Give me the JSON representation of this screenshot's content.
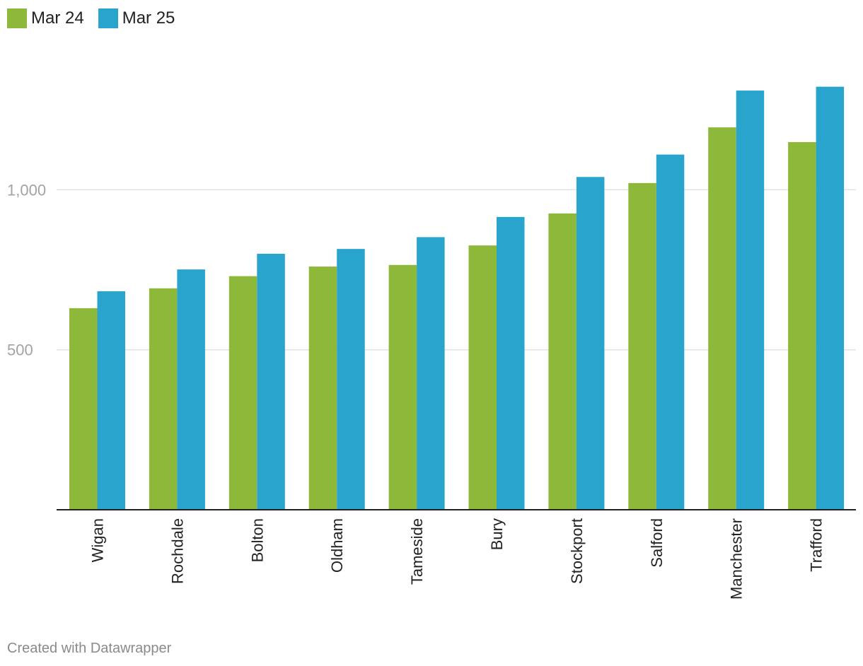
{
  "chart_data": {
    "type": "bar",
    "categories": [
      "Wigan",
      "Rochdale",
      "Bolton",
      "Oldham",
      "Tameside",
      "Bury",
      "Stockport",
      "Salford",
      "Manchester",
      "Trafford"
    ],
    "series": [
      {
        "name": "Mar 24",
        "color": "#8db83a",
        "values": [
          630,
          692,
          730,
          760,
          765,
          826,
          926,
          1021,
          1195,
          1149
        ]
      },
      {
        "name": "Mar 25",
        "color": "#29a5cd",
        "values": [
          683,
          751,
          800,
          815,
          852,
          915,
          1040,
          1110,
          1310,
          1322
        ]
      }
    ],
    "ylim": [
      0,
      1400
    ],
    "yticks": [
      500,
      1000
    ],
    "ytick_labels": [
      "500",
      "1,000"
    ],
    "grid": true,
    "legend_position": "top-left"
  },
  "footer": {
    "credit": "Created with Datawrapper"
  }
}
